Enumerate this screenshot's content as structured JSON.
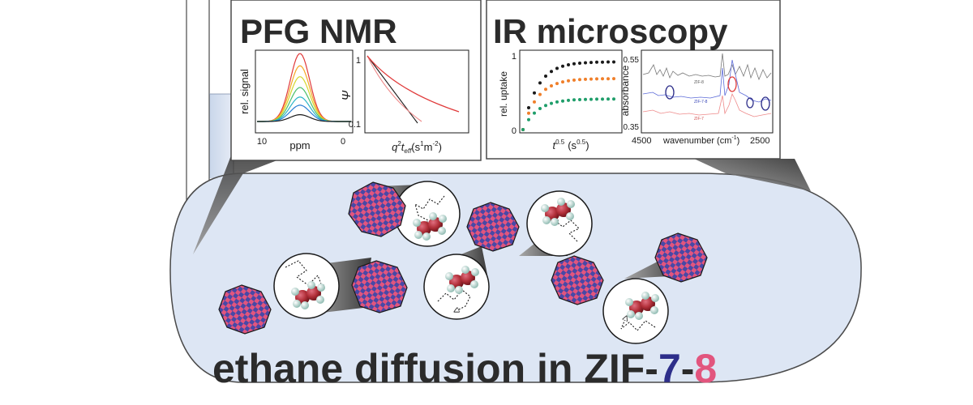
{
  "pfg_panel": {
    "title": "PFG NMR",
    "spectrum": {
      "ylabel": "rel. signal",
      "xlabel": "ppm",
      "ticks": [
        "10",
        "0"
      ],
      "curve_colors": [
        "#e03a3a",
        "#f5a623",
        "#d4d62a",
        "#4cbf6e",
        "#2bb5c9",
        "#2a7fd4",
        "#1a1a1a"
      ],
      "curve_levels": [
        1.0,
        0.82,
        0.66,
        0.5,
        0.36,
        0.24,
        0.1
      ]
    },
    "attenuation": {
      "ylabel": "Ψ",
      "ticks": [
        "1",
        "0.1"
      ],
      "xlabel": {
        "q": "q",
        "q_sup": "2",
        "t": "t",
        "t_sub": "eff",
        "unit": "(s",
        "unit_sup1": "1",
        "m": "m",
        "unit_sup2": "-2",
        "close": ")"
      }
    }
  },
  "ir_panel": {
    "title": "IR microscopy",
    "uptake": {
      "ylabel": "rel. uptake",
      "ticks": [
        "1",
        "0"
      ],
      "xlabel": {
        "t": "t",
        "t_sup": "0.5",
        "unit": "(s",
        "unit_sup": "0.5",
        "close": ")"
      },
      "series_colors": [
        "#1a1a1a",
        "#f07f2a",
        "#1f9e6a"
      ],
      "plateaus": [
        0.93,
        0.7,
        0.42
      ]
    },
    "spectra": {
      "ylabel": "absorbance",
      "ticks": [
        "0.55",
        "0.35"
      ],
      "xticks": [
        "4500",
        "2500"
      ],
      "xlabel": {
        "text": "wavenumber (cm",
        "sup": "-1",
        "close": ")"
      },
      "series": [
        {
          "name": "ZIF-8",
          "color": "#777777"
        },
        {
          "name": "ZIF-7-8",
          "color": "#5c6bd8"
        },
        {
          "name": "ZIF-7",
          "color": "#ee8a8a"
        }
      ]
    }
  },
  "caption": {
    "prefix": "ethane diffusion in ZIF-",
    "num7": "7",
    "dash": "-",
    "num8": "8"
  },
  "colors": {
    "blob_fill": "#dde6f4",
    "crystal_pink": "#e2557e",
    "crystal_purple": "#4848a6",
    "molecule_red": "#b2303a"
  },
  "icons": [
    "ethane-molecule-icon",
    "crystal-icon",
    "random-walk-arrow-icon"
  ]
}
